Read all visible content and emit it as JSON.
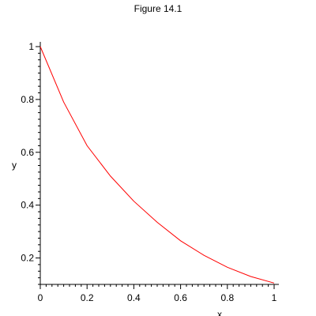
{
  "chart_data": {
    "type": "line",
    "title": "Figure 14.1",
    "xlabel": "x",
    "ylabel": "y",
    "xlim": [
      0,
      1
    ],
    "ylim": [
      0.1,
      1
    ],
    "grid": false,
    "x_ticks": [
      0,
      0.2,
      0.4,
      0.6,
      0.8,
      1
    ],
    "x_tick_labels": [
      "0",
      "0.2",
      "0.4",
      "0.6",
      "0.8",
      "1"
    ],
    "y_ticks": [
      0.2,
      0.4,
      0.6,
      0.8,
      1
    ],
    "y_tick_labels": [
      "0.2",
      "0.4",
      "0.6",
      "0.8",
      "1"
    ],
    "series": [
      {
        "color": "#ff0000",
        "x": [
          0,
          0.1,
          0.2,
          0.3,
          0.4,
          0.5,
          0.6,
          0.7,
          0.8,
          0.9,
          1.0
        ],
        "y": [
          1.0,
          0.79,
          0.625,
          0.51,
          0.415,
          0.335,
          0.265,
          0.21,
          0.165,
          0.13,
          0.105
        ]
      }
    ]
  }
}
